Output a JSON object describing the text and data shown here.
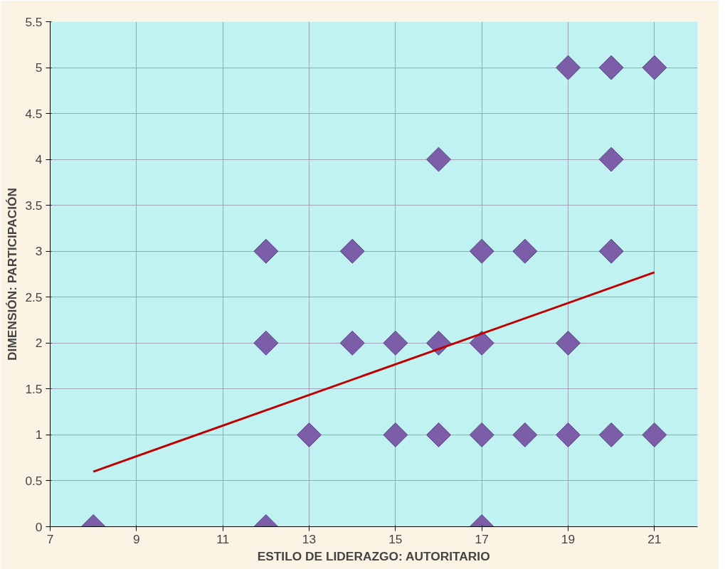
{
  "chart_data": {
    "type": "scatter",
    "xlabel": "ESTILO DE LIDERAZGO: AUTORITARIO",
    "ylabel": "DIMENSIÓN: PARTICIPACIÓN",
    "marker": "diamond",
    "grid": true,
    "xlim": [
      7,
      22
    ],
    "xticks": [
      7,
      9,
      11,
      13,
      15,
      17,
      19,
      21
    ],
    "ylim": [
      0,
      5.5
    ],
    "yticks": [
      0,
      0.5,
      1,
      1.5,
      2,
      2.5,
      3,
      3.5,
      4,
      4.5,
      5,
      5.5
    ],
    "series": [
      {
        "color": "#7b5ea7",
        "x": [
          8,
          12,
          17,
          13,
          15,
          16,
          17,
          18,
          19,
          20,
          21,
          12,
          14,
          15,
          16,
          17,
          19,
          12,
          14,
          17,
          18,
          20,
          16,
          20,
          19,
          20,
          21
        ],
        "values": [
          0,
          0,
          0,
          1,
          1,
          1,
          1,
          1,
          1,
          1,
          1,
          2,
          2,
          2,
          2,
          2,
          2,
          3,
          3,
          3,
          3,
          3,
          4,
          4,
          5,
          5,
          5
        ]
      },
      {
        "type": "line",
        "marker": "none",
        "color": "#c00000",
        "x": [
          8,
          21
        ],
        "values": [
          0.6,
          2.77
        ]
      }
    ]
  }
}
